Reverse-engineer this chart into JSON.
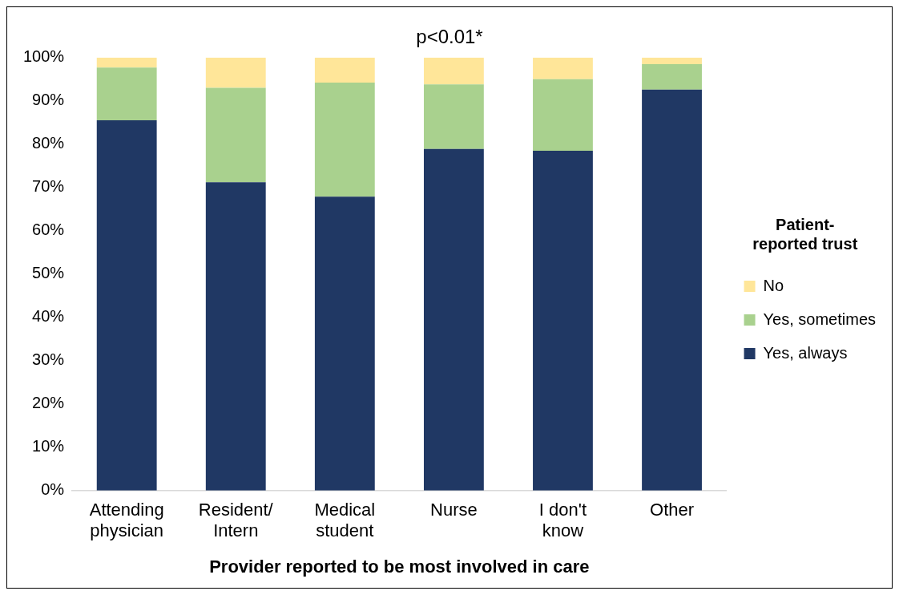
{
  "chart_data": {
    "type": "bar",
    "title": "p<0.01*",
    "xlabel": "Provider reported to be most involved in care",
    "legend_title": "Patient-reported trust",
    "categories": [
      "Attending physician",
      "Resident/Intern",
      "Medical student",
      "Nurse",
      "I don't know",
      "Other"
    ],
    "stacked": true,
    "ylim": [
      0,
      100
    ],
    "yticks": [
      {
        "value": 0,
        "label": "0%"
      },
      {
        "value": 10,
        "label": "10%"
      },
      {
        "value": 20,
        "label": "20%"
      },
      {
        "value": 30,
        "label": "30%"
      },
      {
        "value": 40,
        "label": "40%"
      },
      {
        "value": 50,
        "label": "50%"
      },
      {
        "value": 60,
        "label": "60%"
      },
      {
        "value": 70,
        "label": "70%"
      },
      {
        "value": 80,
        "label": "80%"
      },
      {
        "value": 90,
        "label": "90%"
      },
      {
        "value": 100,
        "label": "100%"
      }
    ],
    "grid": false,
    "legend": "right",
    "series": [
      {
        "name": "Yes, always",
        "color": "#203864",
        "values": [
          85.5,
          71.2,
          67.9,
          78.9,
          78.5,
          92.6
        ]
      },
      {
        "name": "Yes, sometimes",
        "color": "#a9d18e",
        "values": [
          12.2,
          21.8,
          26.3,
          14.9,
          16.5,
          5.9
        ]
      },
      {
        "name": "No",
        "color": "#ffe699",
        "values": [
          2.3,
          7.0,
          5.8,
          6.2,
          5.0,
          1.5
        ]
      }
    ]
  }
}
